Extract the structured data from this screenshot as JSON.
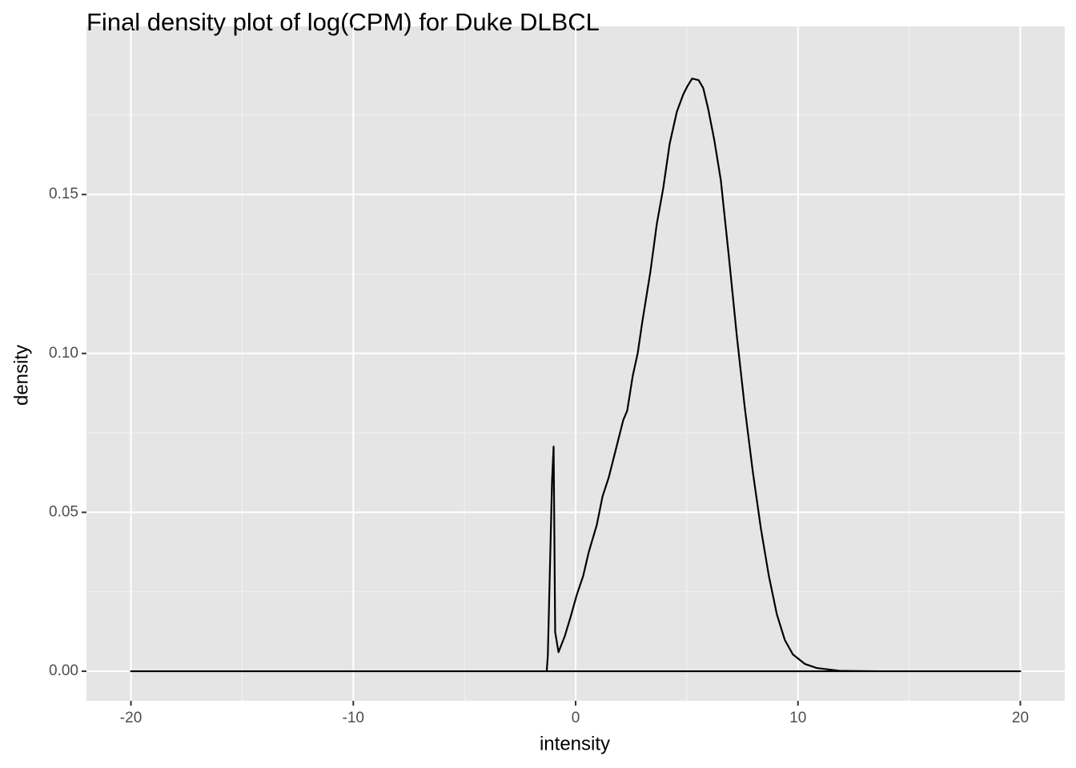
{
  "chart_data": {
    "type": "density",
    "title": "Final density plot of log(CPM) for Duke DLBCL",
    "x_label": "intensity",
    "y_label": "density",
    "x": [
      -20,
      -2,
      -1.3,
      -1.25,
      -1.06,
      -0.99,
      -0.92,
      -0.77,
      -0.49,
      -0.23,
      0.05,
      0.34,
      0.59,
      0.95,
      1.21,
      1.49,
      1.78,
      2.14,
      2.32,
      2.57,
      2.79,
      3.0,
      3.36,
      3.65,
      3.94,
      4.23,
      4.55,
      4.84,
      5.02,
      5.24,
      5.53,
      5.74,
      5.96,
      6.24,
      6.53,
      6.89,
      7.25,
      7.61,
      7.97,
      8.33,
      8.69,
      9.05,
      9.41,
      9.77,
      10.31,
      10.85,
      11.93,
      13.74,
      20
    ],
    "values": [
      0,
      0,
      0,
      0.005,
      0.06,
      0.0707,
      0.0123,
      0.006,
      0.011,
      0.017,
      0.024,
      0.03,
      0.0375,
      0.046,
      0.055,
      0.061,
      0.069,
      0.079,
      0.082,
      0.093,
      0.1,
      0.11,
      0.1256,
      0.1407,
      0.152,
      0.166,
      0.176,
      0.1815,
      0.184,
      0.1865,
      0.186,
      0.1835,
      0.177,
      0.167,
      0.1545,
      0.1306,
      0.1055,
      0.0828,
      0.0627,
      0.045,
      0.03,
      0.0179,
      0.0098,
      0.0053,
      0.0023,
      0.001,
      0.0001,
      0,
      0
    ],
    "color": "#000000",
    "xlim": [
      -22,
      22
    ],
    "xticks": [
      -20,
      -10,
      0,
      10,
      20
    ],
    "x_minor_grid": [
      -15,
      -5,
      5,
      15
    ],
    "ylim": [
      -0.0093,
      0.2029
    ],
    "yticks": [
      {
        "value": 0,
        "label": "0.00"
      },
      0.05,
      {
        "value": 0.1,
        "label": "0.10"
      },
      0.15
    ],
    "y_minor_grid": [
      0.025,
      0.075,
      0.125,
      0.175
    ],
    "grid": true
  }
}
